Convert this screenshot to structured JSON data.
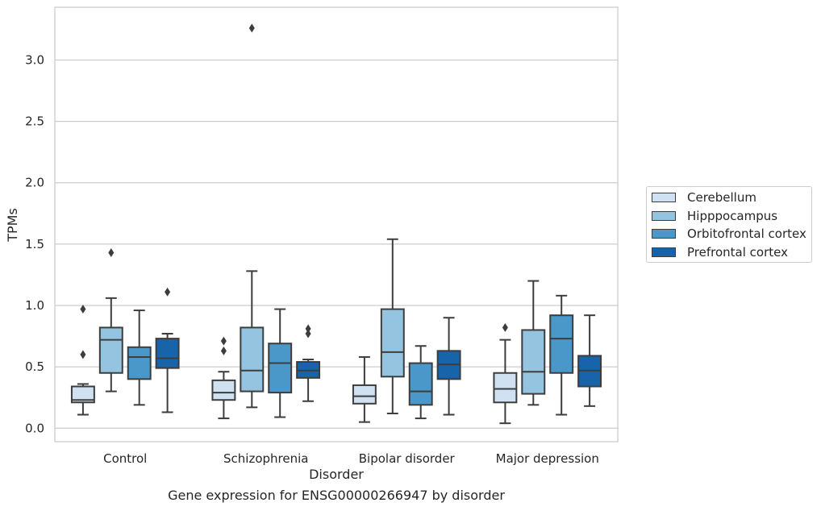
{
  "chart_data": {
    "type": "box",
    "caption": "Gene expression for ENSG00000266947 by disorder",
    "xlabel": "Disorder",
    "ylabel": "TPMs",
    "ylim": [
      -0.11,
      3.43
    ],
    "yticks": [
      "0.0",
      "0.5",
      "1.0",
      "1.5",
      "2.0",
      "2.5",
      "3.0"
    ],
    "grid": "horizontal",
    "legend_position": "outside right",
    "categories": [
      "Control",
      "Schizophrenia",
      "Bipolar disorder",
      "Major depression"
    ],
    "series": [
      {
        "name": "Cerebellum",
        "color": "#d0e1f2",
        "boxes": [
          {
            "whisker_low": 0.11,
            "q1": 0.21,
            "median": 0.23,
            "q3": 0.34,
            "whisker_high": 0.36,
            "outliers": [
              0.6,
              0.97
            ]
          },
          {
            "whisker_low": 0.08,
            "q1": 0.23,
            "median": 0.29,
            "q3": 0.39,
            "whisker_high": 0.46,
            "outliers": [
              0.63,
              0.71
            ]
          },
          {
            "whisker_low": 0.05,
            "q1": 0.2,
            "median": 0.26,
            "q3": 0.35,
            "whisker_high": 0.58,
            "outliers": []
          },
          {
            "whisker_low": 0.04,
            "q1": 0.21,
            "median": 0.32,
            "q3": 0.45,
            "whisker_high": 0.72,
            "outliers": [
              0.82
            ]
          }
        ]
      },
      {
        "name": "Hipppocampus",
        "color": "#94c4df",
        "boxes": [
          {
            "whisker_low": 0.3,
            "q1": 0.45,
            "median": 0.72,
            "q3": 0.82,
            "whisker_high": 1.06,
            "outliers": [
              1.43
            ]
          },
          {
            "whisker_low": 0.17,
            "q1": 0.3,
            "median": 0.47,
            "q3": 0.82,
            "whisker_high": 1.28,
            "outliers": [
              3.26
            ]
          },
          {
            "whisker_low": 0.12,
            "q1": 0.42,
            "median": 0.62,
            "q3": 0.97,
            "whisker_high": 1.54,
            "outliers": []
          },
          {
            "whisker_low": 0.19,
            "q1": 0.28,
            "median": 0.46,
            "q3": 0.8,
            "whisker_high": 1.2,
            "outliers": []
          }
        ]
      },
      {
        "name": "Orbitofrontal cortex",
        "color": "#4a98c9",
        "boxes": [
          {
            "whisker_low": 0.19,
            "q1": 0.4,
            "median": 0.58,
            "q3": 0.66,
            "whisker_high": 0.96,
            "outliers": []
          },
          {
            "whisker_low": 0.09,
            "q1": 0.29,
            "median": 0.53,
            "q3": 0.69,
            "whisker_high": 0.97,
            "outliers": []
          },
          {
            "whisker_low": 0.08,
            "q1": 0.19,
            "median": 0.3,
            "q3": 0.53,
            "whisker_high": 0.67,
            "outliers": []
          },
          {
            "whisker_low": 0.11,
            "q1": 0.45,
            "median": 0.73,
            "q3": 0.92,
            "whisker_high": 1.08,
            "outliers": []
          }
        ]
      },
      {
        "name": "Prefrontal cortex",
        "color": "#1764ab",
        "boxes": [
          {
            "whisker_low": 0.13,
            "q1": 0.49,
            "median": 0.57,
            "q3": 0.73,
            "whisker_high": 0.77,
            "outliers": [
              1.11
            ]
          },
          {
            "whisker_low": 0.22,
            "q1": 0.41,
            "median": 0.47,
            "q3": 0.54,
            "whisker_high": 0.56,
            "outliers": [
              0.77,
              0.81
            ]
          },
          {
            "whisker_low": 0.11,
            "q1": 0.4,
            "median": 0.52,
            "q3": 0.63,
            "whisker_high": 0.9,
            "outliers": []
          },
          {
            "whisker_low": 0.18,
            "q1": 0.34,
            "median": 0.47,
            "q3": 0.59,
            "whisker_high": 0.92,
            "outliers": []
          }
        ]
      }
    ]
  }
}
